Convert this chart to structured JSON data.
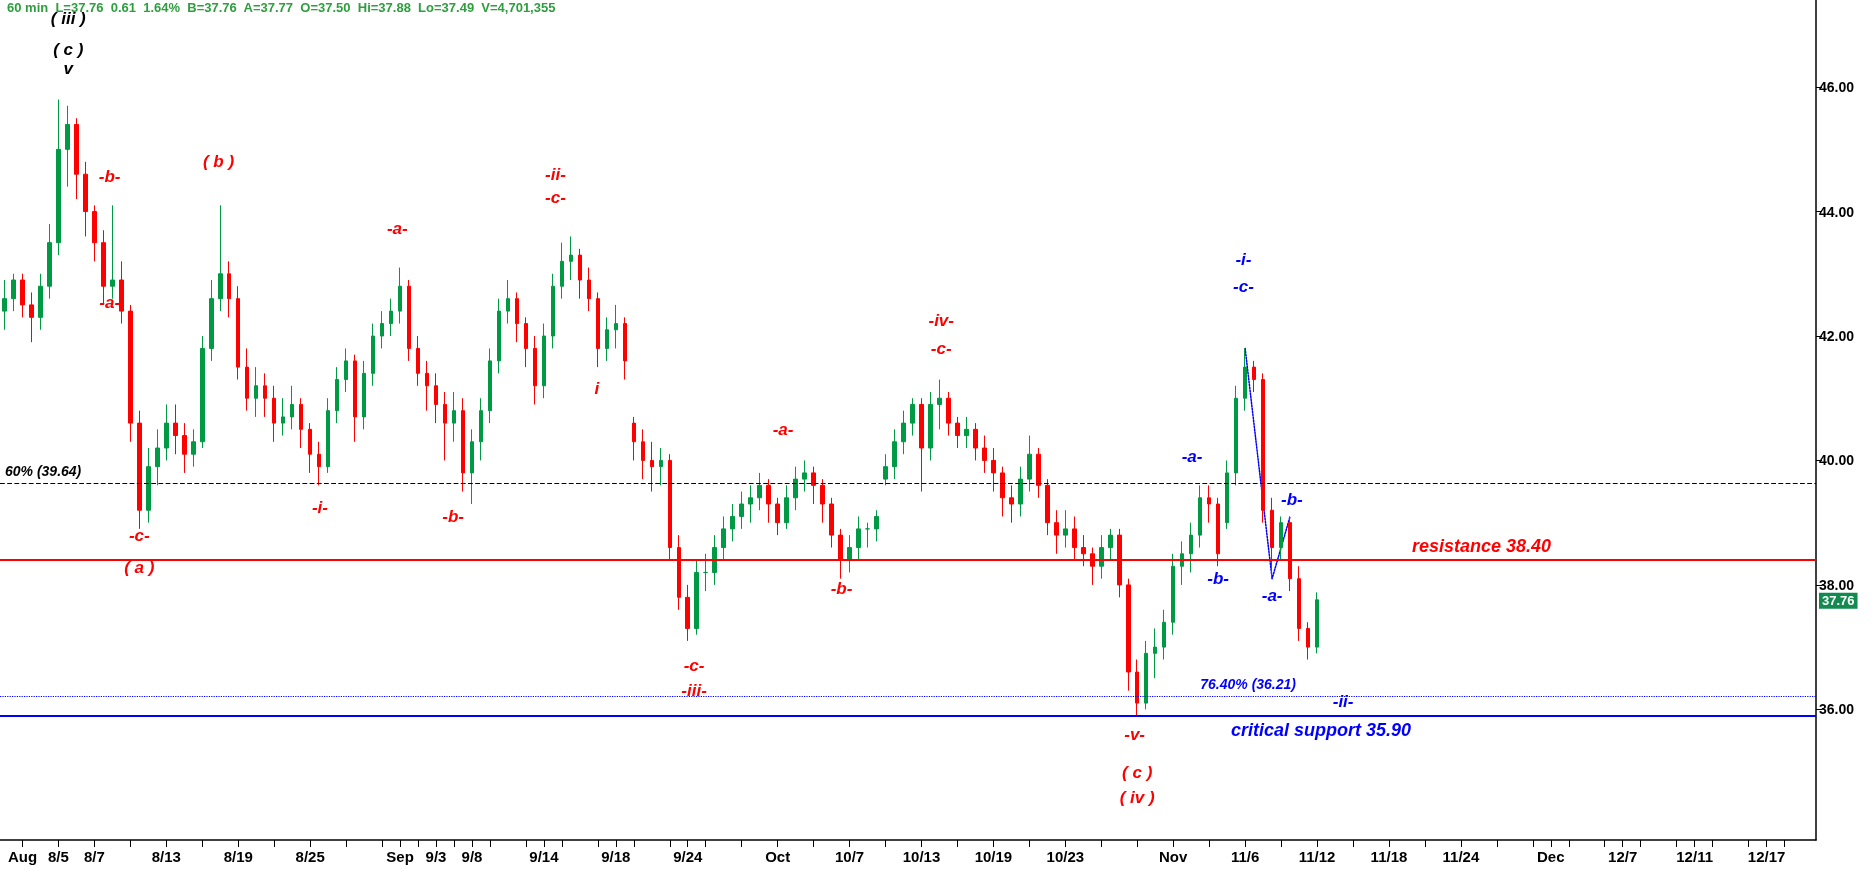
{
  "chart_data": {
    "type": "candlestick",
    "title": "60 min  L=37.76  0.61  1.64%  B=37.76  A=37.77  O=37.50  Hi=37.88  Lo=37.49  V=4,701,355",
    "categories": [
      null,
      null,
      "Aug",
      null,
      null,
      null,
      "8/5",
      null,
      null,
      null,
      "8/7",
      null,
      null,
      null,
      null,
      null,
      null,
      null,
      "8/13",
      null,
      null,
      null,
      null,
      null,
      null,
      null,
      "8/19",
      null,
      null,
      null,
      null,
      null,
      null,
      null,
      "8/25",
      null,
      null,
      null,
      null,
      null,
      null,
      null,
      null,
      null,
      "Sep",
      null,
      null,
      null,
      "9/3",
      null,
      null,
      null,
      "9/8",
      null,
      null,
      null,
      null,
      null,
      null,
      null,
      "9/14",
      null,
      null,
      null,
      null,
      null,
      null,
      null,
      "9/18",
      null,
      null,
      null,
      null,
      null,
      null,
      null,
      "9/24",
      null,
      null,
      null,
      null,
      null,
      null,
      null,
      null,
      null,
      "Oct",
      null,
      null,
      null,
      null,
      null,
      null,
      null,
      "10/7",
      null,
      null,
      null,
      null,
      null,
      null,
      null,
      "10/13",
      null,
      null,
      null,
      null,
      null,
      null,
      null,
      "10/19",
      null,
      null,
      null,
      null,
      null,
      null,
      null,
      "10/23",
      null,
      null,
      null,
      null,
      null,
      null,
      null,
      null,
      null,
      null,
      null,
      "Nov",
      null,
      null,
      null,
      null,
      null,
      null,
      null,
      "11/6",
      null,
      null,
      null,
      null,
      null,
      null,
      null,
      "11/12",
      null,
      null,
      null,
      null,
      null,
      null,
      null,
      "11/18",
      null,
      null,
      null,
      null,
      null,
      null,
      null,
      "11/24",
      null,
      null,
      null,
      null,
      null,
      null,
      null,
      null,
      null,
      "Dec",
      null,
      null,
      null,
      null,
      null,
      null,
      null,
      "12/7",
      null,
      null,
      null,
      null,
      null,
      null,
      null,
      "12/11",
      null,
      null,
      null,
      null,
      null,
      null,
      null,
      "12/17",
      null,
      null,
      null,
      null,
      null
    ],
    "ohlc": [
      [
        42.4,
        42.9,
        42.1,
        42.6
      ],
      [
        42.6,
        43.0,
        42.4,
        42.9
      ],
      [
        42.9,
        43.0,
        42.3,
        42.5
      ],
      [
        42.5,
        42.7,
        41.9,
        42.3
      ],
      [
        42.3,
        43.0,
        42.1,
        42.8
      ],
      [
        42.8,
        43.8,
        42.6,
        43.5
      ],
      [
        43.5,
        45.8,
        43.3,
        45.0
      ],
      [
        45.0,
        45.7,
        44.4,
        45.4
      ],
      [
        45.4,
        45.5,
        44.2,
        44.6
      ],
      [
        44.6,
        44.8,
        43.6,
        44.0
      ],
      [
        44.0,
        44.1,
        43.2,
        43.5
      ],
      [
        43.5,
        43.7,
        42.5,
        42.8
      ],
      [
        42.8,
        44.1,
        42.6,
        42.9
      ],
      [
        42.9,
        43.2,
        42.2,
        42.4
      ],
      [
        42.4,
        42.5,
        40.3,
        40.6
      ],
      [
        40.6,
        40.8,
        38.9,
        39.2
      ],
      [
        39.2,
        40.2,
        39.0,
        39.9
      ],
      [
        39.9,
        40.5,
        39.6,
        40.2
      ],
      [
        40.2,
        40.9,
        40.0,
        40.6
      ],
      [
        40.6,
        40.9,
        40.1,
        40.4
      ],
      [
        40.4,
        40.6,
        39.8,
        40.1
      ],
      [
        40.1,
        40.5,
        39.9,
        40.3
      ],
      [
        40.3,
        42.0,
        40.2,
        41.8
      ],
      [
        41.8,
        42.9,
        41.6,
        42.6
      ],
      [
        42.6,
        44.1,
        42.4,
        43.0
      ],
      [
        43.0,
        43.2,
        42.3,
        42.6
      ],
      [
        42.6,
        42.8,
        41.3,
        41.5
      ],
      [
        41.5,
        41.8,
        40.8,
        41.0
      ],
      [
        41.0,
        41.5,
        40.7,
        41.2
      ],
      [
        41.2,
        41.4,
        40.7,
        41.0
      ],
      [
        41.0,
        41.2,
        40.3,
        40.6
      ],
      [
        40.6,
        41.0,
        40.4,
        40.7
      ],
      [
        40.7,
        41.2,
        40.5,
        40.9
      ],
      [
        40.9,
        41.0,
        40.2,
        40.5
      ],
      [
        40.5,
        40.6,
        39.8,
        40.1
      ],
      [
        40.1,
        40.3,
        39.6,
        39.9
      ],
      [
        39.9,
        41.0,
        39.8,
        40.8
      ],
      [
        40.8,
        41.5,
        40.6,
        41.3
      ],
      [
        41.3,
        41.8,
        41.1,
        41.6
      ],
      [
        41.6,
        41.7,
        40.3,
        40.7
      ],
      [
        40.7,
        41.6,
        40.5,
        41.4
      ],
      [
        41.4,
        42.2,
        41.2,
        42.0
      ],
      [
        42.0,
        42.4,
        41.8,
        42.2
      ],
      [
        42.2,
        42.6,
        42.0,
        42.4
      ],
      [
        42.4,
        43.1,
        42.2,
        42.8
      ],
      [
        42.8,
        42.9,
        41.6,
        41.8
      ],
      [
        41.8,
        42.0,
        41.2,
        41.4
      ],
      [
        41.4,
        41.6,
        40.8,
        41.2
      ],
      [
        41.2,
        41.4,
        40.6,
        40.9
      ],
      [
        40.9,
        41.1,
        40.0,
        40.6
      ],
      [
        40.6,
        41.1,
        40.3,
        40.8
      ],
      [
        40.8,
        41.0,
        39.5,
        39.8
      ],
      [
        39.8,
        40.5,
        39.3,
        40.3
      ],
      [
        40.3,
        41.0,
        40.0,
        40.8
      ],
      [
        40.8,
        41.8,
        40.6,
        41.6
      ],
      [
        41.6,
        42.6,
        41.4,
        42.4
      ],
      [
        42.4,
        42.9,
        42.2,
        42.6
      ],
      [
        42.6,
        42.7,
        41.9,
        42.2
      ],
      [
        42.2,
        42.3,
        41.5,
        41.8
      ],
      [
        41.8,
        42.0,
        40.9,
        41.2
      ],
      [
        41.2,
        42.2,
        41.0,
        42.0
      ],
      [
        42.0,
        43.0,
        41.8,
        42.8
      ],
      [
        42.8,
        43.5,
        42.6,
        43.2
      ],
      [
        43.2,
        43.6,
        42.9,
        43.3
      ],
      [
        43.3,
        43.4,
        42.6,
        42.9
      ],
      [
        42.9,
        43.1,
        42.4,
        42.6
      ],
      [
        42.6,
        42.7,
        41.5,
        41.8
      ],
      [
        41.8,
        42.3,
        41.6,
        42.1
      ],
      [
        42.1,
        42.5,
        41.8,
        42.2
      ],
      [
        42.2,
        42.3,
        41.3,
        41.6
      ],
      [
        40.6,
        40.7,
        40.0,
        40.3
      ],
      [
        40.3,
        40.5,
        39.7,
        40.0
      ],
      [
        40.0,
        40.3,
        39.5,
        39.9
      ],
      [
        39.9,
        40.2,
        39.6,
        40.0
      ],
      [
        40.0,
        40.1,
        38.4,
        38.6
      ],
      [
        38.6,
        38.8,
        37.6,
        37.8
      ],
      [
        37.8,
        38.0,
        37.1,
        37.3
      ],
      [
        37.3,
        38.4,
        37.2,
        38.2
      ],
      [
        38.2,
        38.5,
        37.9,
        38.2
      ],
      [
        38.2,
        38.8,
        38.0,
        38.6
      ],
      [
        38.6,
        39.1,
        38.4,
        38.9
      ],
      [
        38.9,
        39.3,
        38.7,
        39.1
      ],
      [
        39.1,
        39.5,
        38.9,
        39.3
      ],
      [
        39.3,
        39.6,
        39.0,
        39.4
      ],
      [
        39.4,
        39.8,
        39.2,
        39.6
      ],
      [
        39.6,
        39.7,
        39.0,
        39.3
      ],
      [
        39.3,
        39.4,
        38.8,
        39.0
      ],
      [
        39.0,
        39.6,
        38.9,
        39.4
      ],
      [
        39.4,
        39.9,
        39.2,
        39.7
      ],
      [
        39.7,
        40.0,
        39.5,
        39.8
      ],
      [
        39.8,
        39.9,
        39.3,
        39.6
      ],
      [
        39.6,
        39.7,
        39.0,
        39.3
      ],
      [
        39.3,
        39.4,
        38.6,
        38.8
      ],
      [
        38.8,
        38.9,
        38.1,
        38.4
      ],
      [
        38.4,
        38.8,
        38.2,
        38.6
      ],
      [
        38.6,
        39.1,
        38.4,
        38.9
      ],
      [
        38.9,
        39.0,
        38.6,
        38.9
      ],
      [
        38.9,
        39.2,
        38.7,
        39.1
      ],
      [
        39.7,
        40.1,
        39.6,
        39.9
      ],
      [
        39.9,
        40.5,
        39.7,
        40.3
      ],
      [
        40.3,
        40.8,
        40.1,
        40.6
      ],
      [
        40.6,
        41.0,
        40.4,
        40.9
      ],
      [
        40.9,
        41.0,
        39.5,
        40.2
      ],
      [
        40.2,
        41.1,
        40.0,
        40.9
      ],
      [
        40.9,
        41.3,
        40.5,
        41.0
      ],
      [
        41.0,
        41.1,
        40.4,
        40.6
      ],
      [
        40.6,
        40.7,
        40.2,
        40.4
      ],
      [
        40.4,
        40.7,
        40.2,
        40.5
      ],
      [
        40.5,
        40.6,
        40.0,
        40.2
      ],
      [
        40.2,
        40.4,
        39.8,
        40.0
      ],
      [
        40.0,
        40.2,
        39.5,
        39.8
      ],
      [
        39.8,
        39.9,
        39.1,
        39.4
      ],
      [
        39.4,
        39.6,
        39.0,
        39.3
      ],
      [
        39.3,
        39.9,
        39.1,
        39.7
      ],
      [
        39.7,
        40.4,
        39.5,
        40.1
      ],
      [
        40.1,
        40.2,
        39.4,
        39.6
      ],
      [
        39.6,
        39.7,
        38.8,
        39.0
      ],
      [
        39.0,
        39.2,
        38.5,
        38.8
      ],
      [
        38.8,
        39.2,
        38.6,
        38.9
      ],
      [
        38.9,
        39.1,
        38.4,
        38.6
      ],
      [
        38.6,
        38.8,
        38.3,
        38.5
      ],
      [
        38.5,
        38.6,
        38.0,
        38.3
      ],
      [
        38.3,
        38.8,
        38.1,
        38.6
      ],
      [
        38.6,
        38.9,
        38.4,
        38.8
      ],
      [
        38.8,
        38.9,
        37.8,
        38.0
      ],
      [
        38.0,
        38.1,
        36.3,
        36.6
      ],
      [
        36.6,
        36.8,
        35.9,
        36.1
      ],
      [
        36.1,
        37.1,
        36.0,
        36.9
      ],
      [
        36.9,
        37.3,
        36.5,
        37.0
      ],
      [
        37.0,
        37.6,
        36.8,
        37.4
      ],
      [
        37.4,
        38.5,
        37.2,
        38.3
      ],
      [
        38.3,
        38.7,
        38.0,
        38.5
      ],
      [
        38.5,
        39.0,
        38.2,
        38.8
      ],
      [
        38.8,
        39.6,
        38.6,
        39.4
      ],
      [
        39.4,
        39.6,
        39.0,
        39.3
      ],
      [
        39.3,
        39.4,
        38.3,
        38.5
      ],
      [
        39.0,
        40.0,
        38.9,
        39.8
      ],
      [
        39.8,
        41.2,
        39.6,
        41.0
      ],
      [
        41.0,
        41.8,
        40.8,
        41.5
      ],
      [
        41.5,
        41.6,
        41.1,
        41.3
      ],
      [
        41.3,
        41.4,
        39.0,
        39.2
      ],
      [
        39.2,
        39.4,
        38.1,
        38.6
      ],
      [
        38.6,
        39.1,
        38.4,
        39.0
      ],
      [
        39.0,
        39.1,
        37.9,
        38.1
      ],
      [
        38.1,
        38.3,
        37.1,
        37.3
      ],
      [
        37.3,
        37.4,
        36.8,
        37.0
      ],
      [
        37.0,
        37.88,
        36.9,
        37.76
      ],
      null,
      null,
      null,
      null,
      null,
      null,
      null,
      null,
      null,
      null,
      null,
      null,
      null,
      null,
      null,
      null,
      null,
      null,
      null,
      null,
      null,
      null,
      null,
      null,
      null,
      null,
      null,
      null,
      null,
      null,
      null,
      null,
      null,
      null,
      null,
      null,
      null,
      null,
      null,
      null,
      null,
      null,
      null,
      null,
      null,
      null,
      null,
      null,
      null,
      null,
      null,
      null,
      null,
      null,
      null
    ],
    "series": [
      {
        "type": "line",
        "color": "#0000ff",
        "line_style": "dotted",
        "marker": "none",
        "values": [
          null,
          null,
          null,
          null,
          null,
          null,
          null,
          null,
          null,
          null,
          null,
          null,
          null,
          null,
          null,
          null,
          null,
          null,
          null,
          null,
          null,
          null,
          null,
          null,
          null,
          null,
          null,
          null,
          null,
          null,
          null,
          null,
          null,
          null,
          null,
          null,
          null,
          null,
          null,
          null,
          null,
          null,
          null,
          null,
          null,
          null,
          null,
          null,
          null,
          null,
          null,
          null,
          null,
          null,
          null,
          null,
          null,
          null,
          null,
          null,
          null,
          null,
          null,
          null,
          null,
          null,
          null,
          null,
          null,
          null,
          null,
          null,
          null,
          null,
          null,
          null,
          null,
          null,
          null,
          null,
          null,
          null,
          null,
          null,
          null,
          null,
          null,
          null,
          null,
          null,
          null,
          null,
          null,
          null,
          null,
          null,
          null,
          null,
          null,
          null,
          null,
          null,
          null,
          null,
          null,
          null,
          null,
          null,
          null,
          null,
          null,
          null,
          null,
          null,
          null,
          null,
          null,
          null,
          null,
          null,
          null,
          null,
          null,
          null,
          null,
          null,
          null,
          null,
          null,
          null,
          null,
          null,
          null,
          null,
          null,
          null,
          null,
          null,
          41.8,
          null,
          null,
          38.1,
          null,
          39.1,
          null,
          null,
          null,
          null,
          null,
          null,
          null,
          null,
          null,
          null,
          null,
          null,
          null,
          null,
          null,
          null,
          null,
          null,
          null,
          null,
          null,
          null,
          null,
          null,
          null,
          null,
          null,
          null,
          null,
          null,
          null,
          null,
          null,
          null,
          null,
          null,
          null,
          null,
          null,
          null,
          null,
          null,
          null,
          null,
          null,
          null,
          null,
          null,
          null,
          null,
          null,
          null,
          null,
          null,
          null,
          null,
          null,
          null
        ]
      }
    ],
    "ylim": [
      33.9,
      47.4
    ],
    "yticks": [
      {
        "value": 36,
        "label": "36.00"
      },
      {
        "value": 38,
        "label": "38.00"
      },
      {
        "value": 40,
        "label": "40.00"
      },
      {
        "value": 42,
        "label": "42.00"
      },
      {
        "value": 44,
        "label": "44.00"
      },
      {
        "value": 46,
        "label": "46.00"
      }
    ],
    "grid": false,
    "legend": false,
    "ref_lines": [
      {
        "axis": "y",
        "value": 39.64,
        "label": "60% (39.64)",
        "color": "#000000",
        "line_style": "dashed"
      },
      {
        "axis": "y",
        "value": 38.4,
        "label": "resistance 38.40",
        "color": "#ff0000",
        "line_style": "solid"
      },
      {
        "axis": "y",
        "value": 36.21,
        "label": "76.40% (36.21)",
        "color": "#0000ff",
        "line_style": "dotted"
      },
      {
        "axis": "y",
        "value": 35.9,
        "label": "critical support 35.90",
        "color": "#0000ff",
        "line_style": "solid"
      }
    ],
    "annotations": [
      "( iii )",
      "( c )",
      "v",
      "-b-",
      "-a-",
      "-c-",
      "( a )",
      "( b )",
      "-i-",
      "-a-",
      "-b-",
      "-ii-",
      "-c-",
      "i",
      "-c-",
      "-iii-",
      "-a-",
      "-b-",
      "-iv-",
      "-c-",
      "-v-",
      "( c )",
      "( iv )",
      "-a-",
      "-b-",
      "-i-",
      "-c-",
      "-b-",
      "-a-",
      "-ii-",
      "37.76"
    ]
  }
}
